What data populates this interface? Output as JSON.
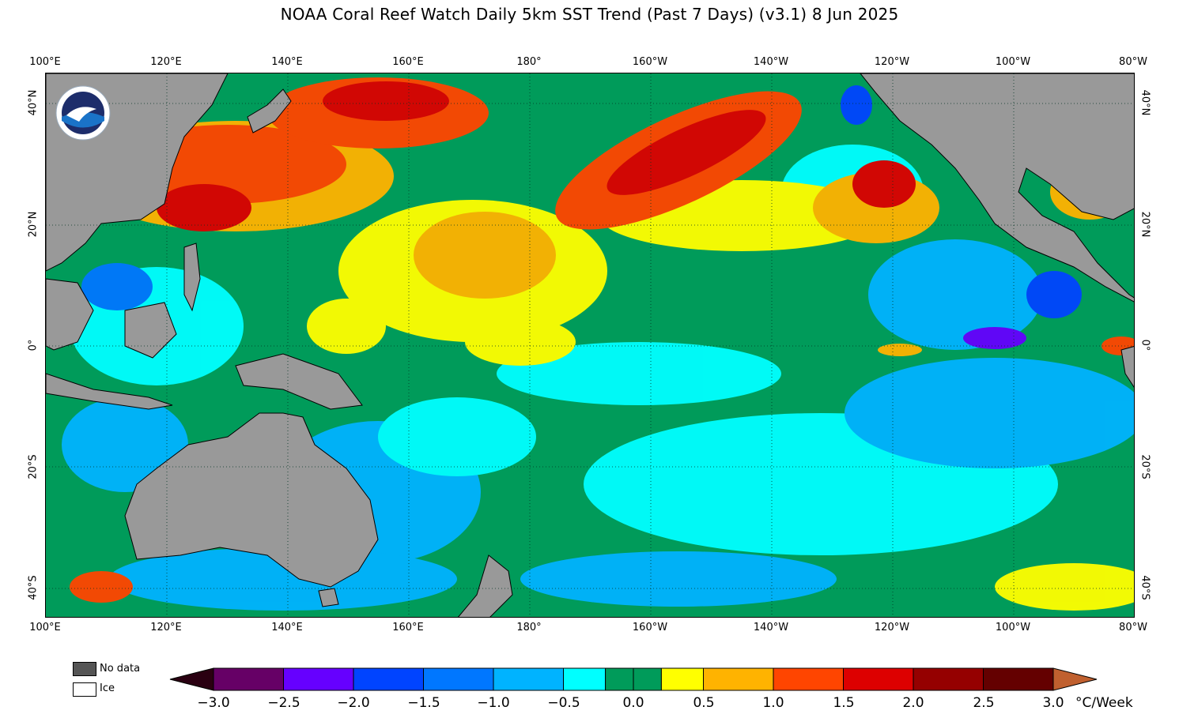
{
  "title": "NOAA Coral Reef Watch Daily 5km SST Trend (Past 7 Days)  (v3.1)   8 Jun 2025",
  "map": {
    "region": "Pacific Ocean",
    "lon_labels": [
      "100°E",
      "120°E",
      "140°E",
      "160°E",
      "180°",
      "160°W",
      "140°W",
      "120°W",
      "100°W",
      "80°W"
    ],
    "lat_labels": [
      "40°N",
      "20°N",
      "0°",
      "20°S",
      "40°S"
    ],
    "lon_range": [
      100,
      280
    ],
    "lat_range": [
      -45,
      45
    ],
    "land_color": "#999999",
    "ocean_base_color": "#009b5a"
  },
  "legend": {
    "no_data_label": "No data",
    "no_data_color": "#555555",
    "ice_label": "Ice",
    "ice_color": "#ffffff"
  },
  "colorbar": {
    "unit": "°C/Week",
    "tick_labels": [
      "−3.0",
      "−2.5",
      "−2.0",
      "−1.5",
      "−1.0",
      "−0.5",
      "0.0",
      "0.5",
      "1.0",
      "1.5",
      "2.0",
      "2.5",
      "3.0"
    ],
    "under_color": "#2a0011",
    "over_color": "#c0602f",
    "bins": [
      {
        "from": -3.0,
        "to": -2.5,
        "color": "#660066"
      },
      {
        "from": -2.5,
        "to": -2.0,
        "color": "#6600ff"
      },
      {
        "from": -2.0,
        "to": -1.5,
        "color": "#0044ff"
      },
      {
        "from": -1.5,
        "to": -1.0,
        "color": "#0077ff"
      },
      {
        "from": -1.0,
        "to": -0.5,
        "color": "#00b3ff"
      },
      {
        "from": -0.5,
        "to": -0.2,
        "color": "#00ffff"
      },
      {
        "from": -0.2,
        "to": 0.0,
        "color": "#009b5a"
      },
      {
        "from": 0.0,
        "to": 0.2,
        "color": "#009b5a"
      },
      {
        "from": 0.2,
        "to": 0.5,
        "color": "#ffff00"
      },
      {
        "from": 0.5,
        "to": 1.0,
        "color": "#ffb300"
      },
      {
        "from": 1.0,
        "to": 1.5,
        "color": "#ff4500"
      },
      {
        "from": 1.5,
        "to": 2.0,
        "color": "#dd0000"
      },
      {
        "from": 2.0,
        "to": 2.5,
        "color": "#950000"
      },
      {
        "from": 2.5,
        "to": 3.0,
        "color": "#640000"
      }
    ]
  }
}
